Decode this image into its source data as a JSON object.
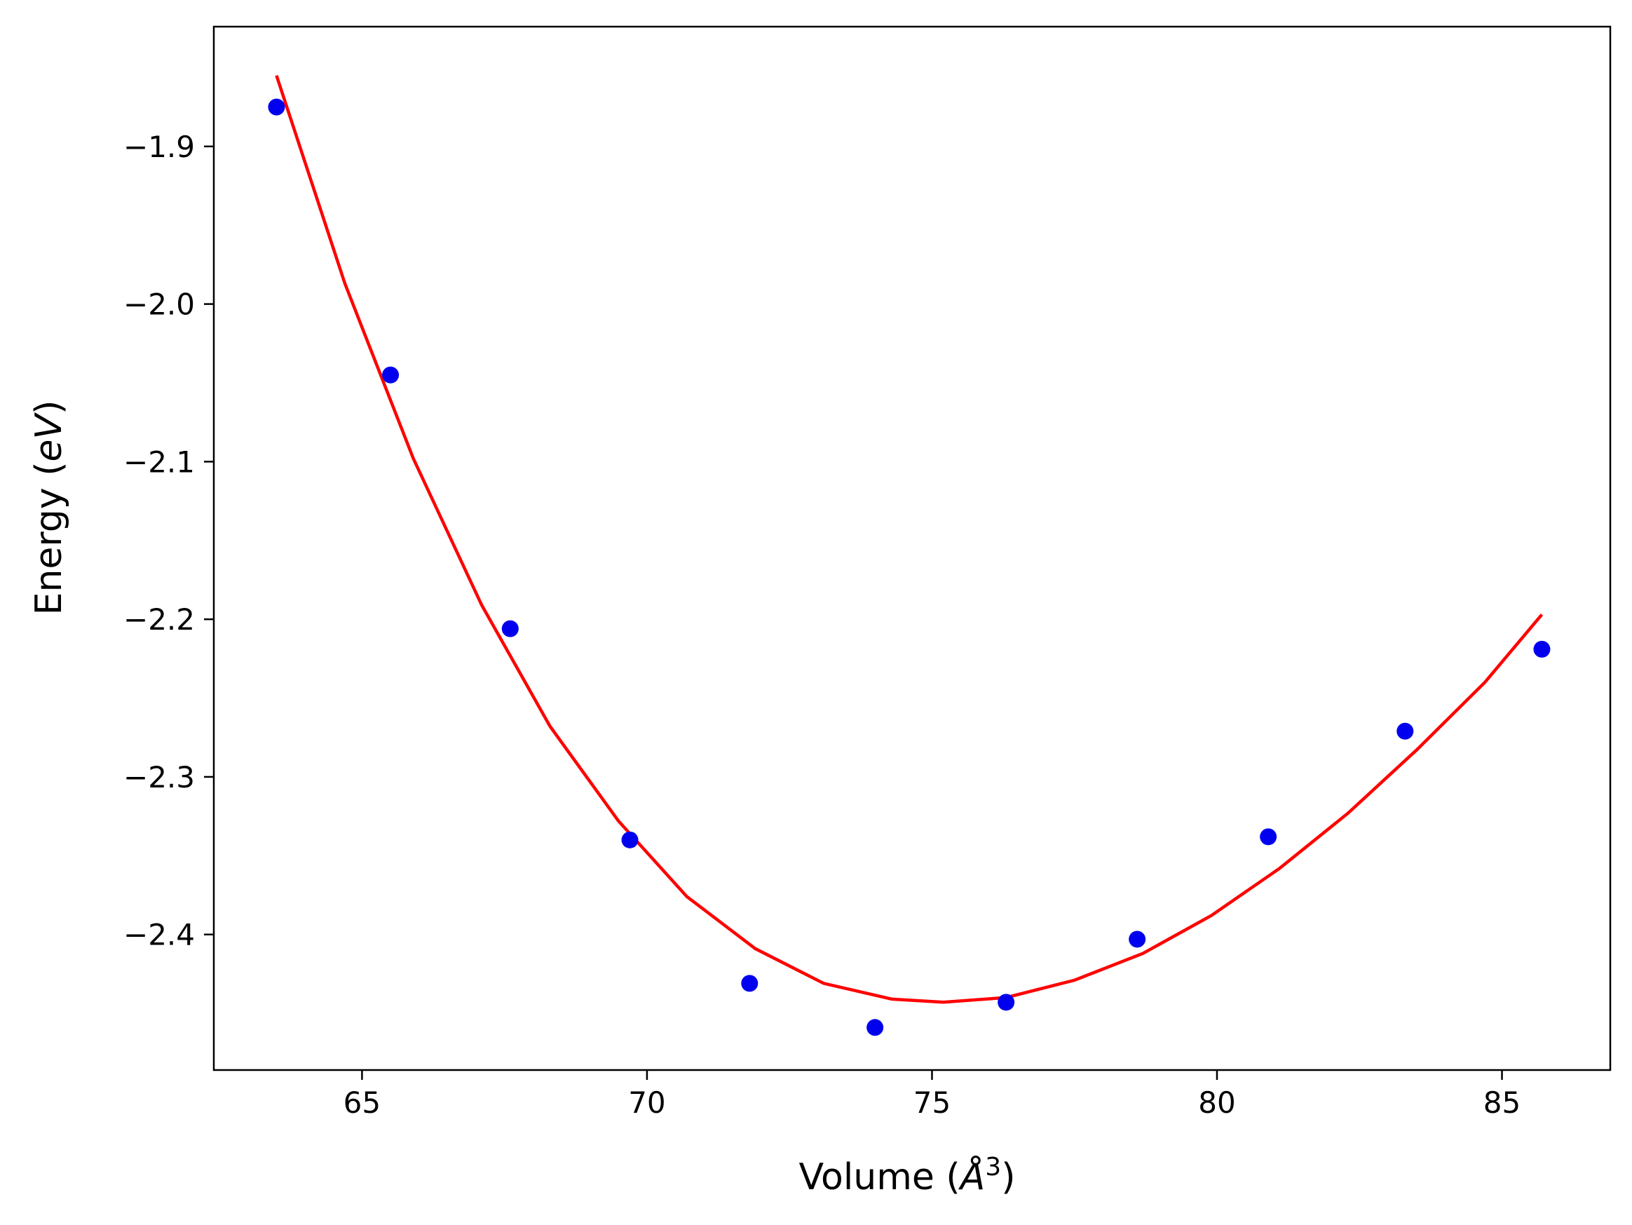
{
  "chart_data": {
    "type": "scatter",
    "xlabel": "Volume (Å³)",
    "xlabel_parts": {
      "prefix": "Volume (",
      "unit_symbol": "Å",
      "exponent": "3",
      "suffix": ")"
    },
    "ylabel": "Energy (eV)",
    "ylabel_parts": {
      "prefix": "Energy (",
      "unit": "eV",
      "suffix": ")"
    },
    "xlim": [
      62.4,
      86.9
    ],
    "ylim": [
      -2.486,
      -1.824
    ],
    "grid": false,
    "x_ticks": [
      {
        "value": 65,
        "label": "65"
      },
      {
        "value": 70,
        "label": "70"
      },
      {
        "value": 75,
        "label": "75"
      },
      {
        "value": 80,
        "label": "80"
      },
      {
        "value": 85,
        "label": "85"
      }
    ],
    "y_ticks": [
      {
        "value": -1.9,
        "label": "−1.9"
      },
      {
        "value": -2.0,
        "label": "−2.0"
      },
      {
        "value": -2.1,
        "label": "−2.1"
      },
      {
        "value": -2.2,
        "label": "−2.2"
      },
      {
        "value": -2.3,
        "label": "−2.3"
      },
      {
        "value": -2.4,
        "label": "−2.4"
      }
    ],
    "series": [
      {
        "kind": "scatter",
        "color": "#0000ee",
        "x": [
          63.5,
          65.5,
          67.6,
          69.7,
          71.8,
          74.0,
          76.3,
          78.6,
          80.9,
          83.3,
          85.7
        ],
        "y": [
          -1.875,
          -2.045,
          -2.206,
          -2.34,
          -2.431,
          -2.459,
          -2.443,
          -2.403,
          -2.338,
          -2.271,
          -2.219
        ]
      },
      {
        "kind": "line",
        "color": "#ff0000",
        "x": [
          63.5,
          64.7,
          65.9,
          67.1,
          68.3,
          69.5,
          70.7,
          71.9,
          73.1,
          74.3,
          75.2,
          76.3,
          77.5,
          78.7,
          79.9,
          81.1,
          82.3,
          83.5,
          84.7,
          85.7
        ],
        "y": [
          -1.855,
          -1.987,
          -2.098,
          -2.191,
          -2.268,
          -2.328,
          -2.376,
          -2.409,
          -2.431,
          -2.441,
          -2.443,
          -2.44,
          -2.429,
          -2.412,
          -2.388,
          -2.358,
          -2.323,
          -2.283,
          -2.24,
          -2.197
        ]
      }
    ]
  }
}
